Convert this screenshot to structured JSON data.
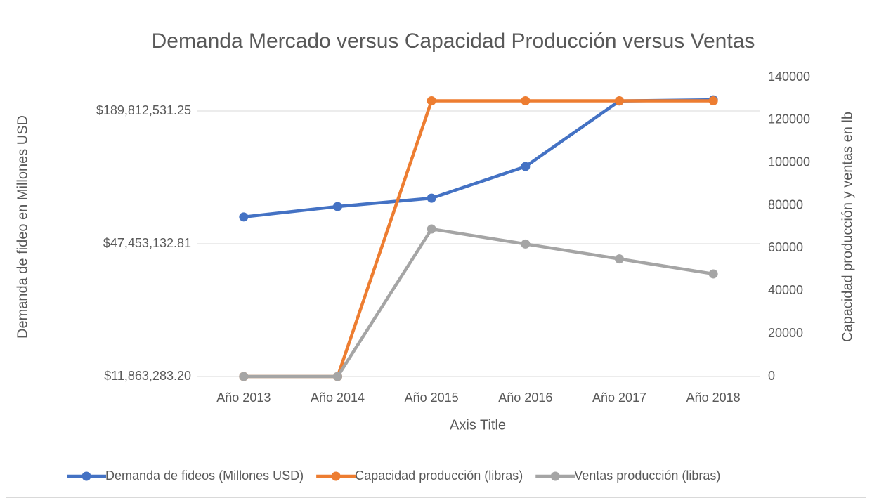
{
  "chart_data": {
    "type": "line",
    "title": "Demanda Mercado versus Capacidad Producción versus Ventas",
    "xlabel": "Axis Title",
    "ylabel": "Demanda de fideo en Millones USD",
    "y2label": "Capacidad producción y ventas en lb",
    "categories": [
      "Año 2013",
      "Año 2014",
      "Año 2015",
      "Año 2016",
      "Año 2017",
      "Año 2018"
    ],
    "ylog": true,
    "ylim": [
      11863283.2,
      270000000
    ],
    "yticks": [
      {
        "value": 11863283.2,
        "label": "$11,863,283.20"
      },
      {
        "value": 47453132.81,
        "label": "$47,453,132.81"
      },
      {
        "value": 189812531.25,
        "label": "$189,812,531.25"
      }
    ],
    "y2lim": [
      0,
      140000
    ],
    "y2ticks": [
      0,
      20000,
      40000,
      60000,
      80000,
      100000,
      120000,
      140000
    ],
    "grid": true,
    "legend": "bottom",
    "series": [
      {
        "name": "Demanda de fideos  (Millones USD)",
        "color": "#4472c4",
        "values": [
          62800000,
          70000000,
          76400000,
          106300000,
          210800000,
          213300000
        ]
      },
      {
        "name": "Capacidad producción (libras)",
        "color": "#ed7d31",
        "axis": "y2",
        "values": [
          0,
          0,
          129000,
          129000,
          129000,
          129000
        ]
      },
      {
        "name": "Ventas producción (libras)",
        "color": "#a5a5a5",
        "axis": "y2",
        "values": [
          0,
          0,
          69000,
          62000,
          55000,
          48000
        ]
      }
    ]
  }
}
